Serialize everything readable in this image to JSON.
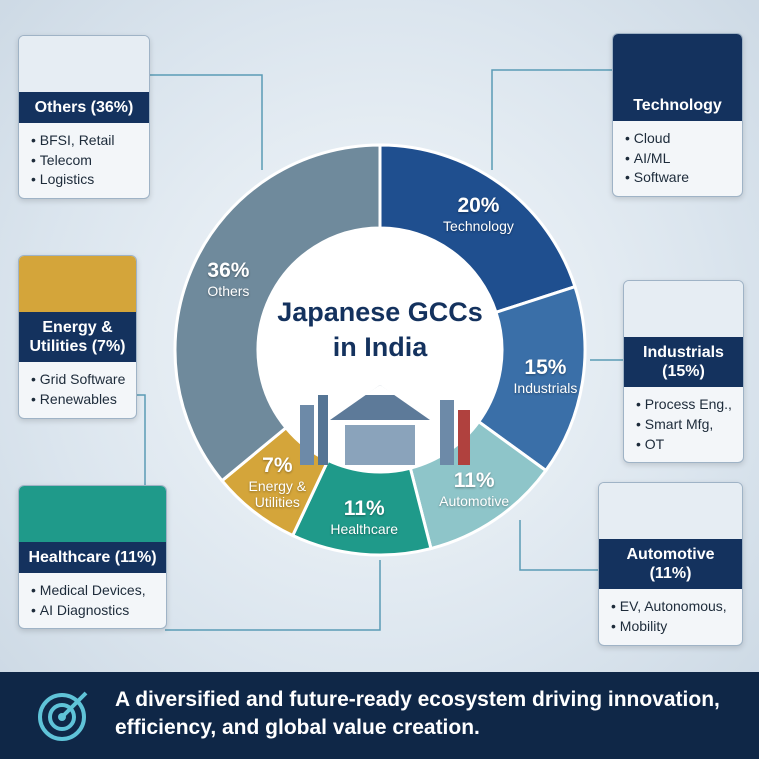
{
  "chart_data": {
    "type": "donut",
    "title": "Japanese GCCs in India",
    "categories": [
      "Technology",
      "Industrials",
      "Automotive",
      "Healthcare",
      "Energy & Utilities",
      "Others"
    ],
    "values": [
      20,
      15,
      11,
      11,
      7,
      36
    ],
    "value_labels": [
      "20%",
      "15%",
      "11%",
      "11%",
      "7%",
      "36%"
    ],
    "colors": [
      "#1f4f8f",
      "#3a6fa8",
      "#8ec5c9",
      "#1f9a8a",
      "#d4a53a",
      "#6f8a9c"
    ]
  },
  "cards": [
    {
      "title": "Others (36%)",
      "items": [
        "BFSI, Retail",
        "Telecom",
        "Logistics"
      ]
    },
    {
      "title": "Technology",
      "items": [
        "Cloud",
        "AI/ML",
        "Software"
      ]
    },
    {
      "title": "Energy & Utilities (7%)",
      "items": [
        "Grid Software",
        "Renewables"
      ]
    },
    {
      "title": "Industrials (15%)",
      "items": [
        "Process Eng.,",
        "Smart Mfg,",
        "OT"
      ]
    },
    {
      "title": "Healthcare (11%)",
      "items": [
        "Medical Devices,",
        "AI Diagnostics"
      ]
    },
    {
      "title": "Automotive (11%)",
      "items": [
        "EV, Autonomous,",
        "Mobility"
      ]
    }
  ],
  "footer": "A diversified and future-ready ecosystem driving innovation, efficiency, and global value creation."
}
